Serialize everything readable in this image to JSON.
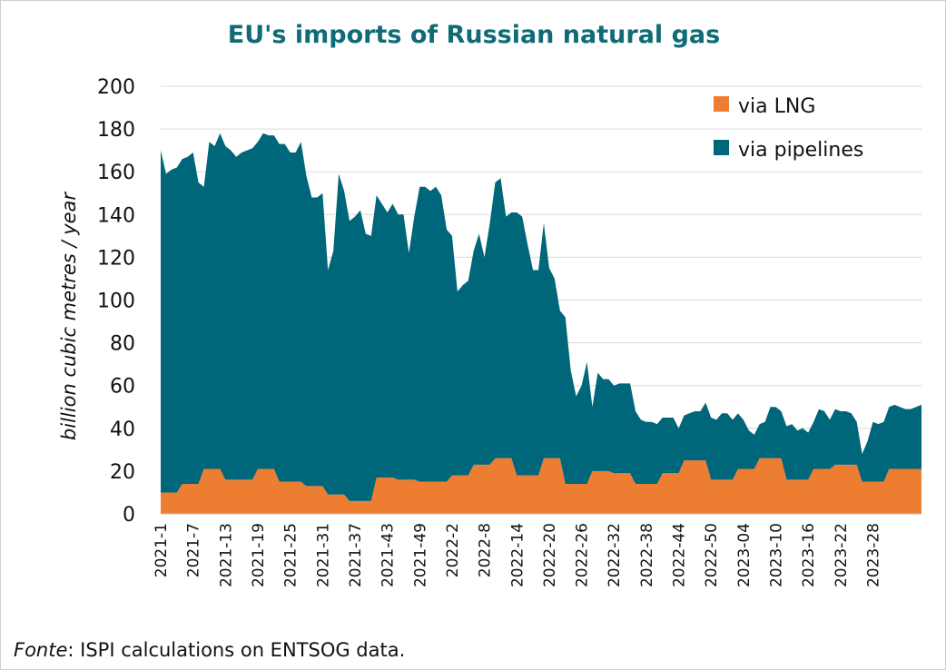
{
  "chart_data": {
    "type": "area",
    "stacked": true,
    "title": "EU's imports of Russian natural gas",
    "ylabel": "billion cubic metres / year",
    "xlabel": "",
    "ylim": [
      0,
      200
    ],
    "yticks": [
      0,
      20,
      40,
      60,
      80,
      100,
      120,
      140,
      160,
      180,
      200
    ],
    "grid": true,
    "legend_position": "top-right",
    "x_tick_labels": [
      "2021-1",
      "2021-7",
      "2021-13",
      "2021-19",
      "2021-25",
      "2021-31",
      "2021-37",
      "2021-43",
      "2021-49",
      "2022-2",
      "2022-8",
      "2022-14",
      "2022-20",
      "2022-26",
      "2022-32",
      "2022-38",
      "2022-44",
      "2022-50",
      "2023-04",
      "2023-10",
      "2023-16",
      "2023-22",
      "2023-28"
    ],
    "series": [
      {
        "name": "via LNG",
        "color": "#ed7d31",
        "values": [
          10,
          10,
          10,
          10,
          14,
          14,
          14,
          14,
          21,
          21,
          21,
          21,
          16,
          16,
          16,
          16,
          16,
          16,
          21,
          21,
          21,
          21,
          15,
          15,
          15,
          15,
          15,
          13,
          13,
          13,
          13,
          9,
          9,
          9,
          9,
          6,
          6,
          6,
          6,
          6,
          17,
          17,
          17,
          17,
          16,
          16,
          16,
          16,
          15,
          15,
          15,
          15,
          15,
          15,
          18,
          18,
          18,
          18,
          23,
          23,
          23,
          23,
          26,
          26,
          26,
          26,
          18,
          18,
          18,
          18,
          18,
          26,
          26,
          26,
          26,
          14,
          14,
          14,
          14,
          14,
          20,
          20,
          20,
          20,
          19,
          19,
          19,
          19,
          14,
          14,
          14,
          14,
          14,
          19,
          19,
          19,
          19,
          25,
          25,
          25,
          25,
          25,
          16,
          16,
          16,
          16,
          16,
          21,
          21,
          21,
          21,
          26,
          26,
          26,
          26,
          26,
          16,
          16,
          16,
          16,
          16,
          21,
          21,
          21,
          21,
          23,
          23,
          23,
          23,
          23,
          15,
          15,
          15,
          15,
          15,
          21,
          21,
          21,
          21,
          21,
          21,
          21
        ]
      },
      {
        "name": "via pipelines",
        "color": "#00667a",
        "values": [
          160,
          149,
          151,
          152,
          152,
          153,
          155,
          141,
          132,
          153,
          151,
          157,
          156,
          154,
          151,
          153,
          154,
          155,
          153,
          157,
          156,
          156,
          158,
          158,
          154,
          154,
          159,
          145,
          135,
          135,
          137,
          105,
          114,
          150,
          142,
          131,
          133,
          136,
          125,
          124,
          132,
          128,
          124,
          128,
          124,
          124,
          106,
          123,
          138,
          138,
          136,
          138,
          134,
          118,
          112,
          86,
          89,
          91,
          100,
          108,
          97,
          113,
          129,
          131,
          113,
          115,
          123,
          121,
          108,
          96,
          96,
          110,
          89,
          84,
          69,
          78,
          53,
          41,
          46,
          57,
          30,
          46,
          43,
          43,
          41,
          42,
          42,
          42,
          34,
          30,
          29,
          29,
          28,
          26,
          26,
          26,
          21,
          21,
          22,
          23,
          23,
          27,
          29,
          28,
          31,
          31,
          28,
          26,
          23,
          18,
          16,
          16,
          17,
          24,
          24,
          22,
          25,
          26,
          23,
          24,
          22,
          22,
          28,
          27,
          23,
          26,
          25,
          25,
          24,
          20,
          13,
          19,
          28,
          27,
          28,
          29,
          30,
          29,
          28,
          28,
          29,
          30
        ]
      }
    ]
  },
  "source": {
    "fonte": "Fonte",
    "text": ": ISPI calculations on ENTSOG data."
  }
}
